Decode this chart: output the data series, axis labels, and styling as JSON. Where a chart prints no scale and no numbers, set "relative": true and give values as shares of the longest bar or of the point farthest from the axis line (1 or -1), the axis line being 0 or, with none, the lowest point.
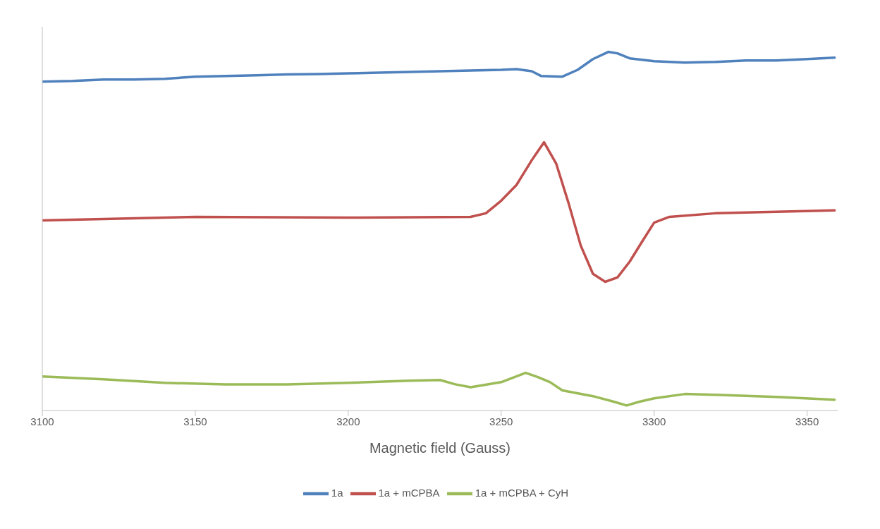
{
  "chart_data": {
    "type": "line",
    "relative": true,
    "xlabel": "Magnetic field (Gauss)",
    "xlim": [
      3100,
      3360
    ],
    "xticks": [
      3100,
      3150,
      3200,
      3250,
      3300,
      3350
    ],
    "grid": false,
    "legend": "bottom",
    "marker": "none",
    "line_style": "solid",
    "series": [
      {
        "name": "1a",
        "color": "#4f81bd",
        "x": [
          3100,
          3110,
          3120,
          3130,
          3140,
          3150,
          3160,
          3170,
          3180,
          3190,
          3200,
          3210,
          3220,
          3230,
          3240,
          3250,
          3255,
          3260,
          3263,
          3270,
          3275,
          3280,
          3285,
          3288,
          3292,
          3300,
          3310,
          3320,
          3330,
          3340,
          3350,
          3359
        ],
        "values": [
          0.917,
          0.919,
          0.923,
          0.923,
          0.925,
          0.931,
          0.933,
          0.935,
          0.937,
          0.938,
          0.94,
          0.942,
          0.944,
          0.946,
          0.948,
          0.95,
          0.952,
          0.946,
          0.933,
          0.931,
          0.95,
          0.98,
          1,
          0.996,
          0.982,
          0.974,
          0.97,
          0.972,
          0.976,
          0.976,
          0.98,
          0.984
        ]
      },
      {
        "name": "1a + mCPBA",
        "color": "#c0504d",
        "x": [
          3100,
          3150,
          3200,
          3240,
          3245,
          3250,
          3255,
          3260,
          3264,
          3268,
          3272,
          3276,
          3280,
          3284,
          3288,
          3292,
          3296,
          3300,
          3305,
          3320,
          3340,
          3359
        ],
        "values": [
          0.53,
          0.54,
          0.538,
          0.54,
          0.55,
          0.585,
          0.629,
          0.698,
          0.748,
          0.688,
          0.579,
          0.46,
          0.381,
          0.359,
          0.371,
          0.415,
          0.47,
          0.524,
          0.54,
          0.55,
          0.554,
          0.558
        ]
      },
      {
        "name": "1a + mCPBA + CyH",
        "color": "#9bbb59",
        "x": [
          3100,
          3120,
          3140,
          3160,
          3180,
          3200,
          3220,
          3230,
          3235,
          3240,
          3250,
          3258,
          3262,
          3266,
          3270,
          3280,
          3287,
          3291,
          3295,
          3300,
          3310,
          3320,
          3340,
          3359
        ],
        "values": [
          0.095,
          0.087,
          0.077,
          0.073,
          0.073,
          0.077,
          0.083,
          0.085,
          0.073,
          0.065,
          0.079,
          0.105,
          0.093,
          0.079,
          0.056,
          0.04,
          0.024,
          0.014,
          0.024,
          0.034,
          0.046,
          0.044,
          0.038,
          0.03
        ]
      }
    ]
  }
}
